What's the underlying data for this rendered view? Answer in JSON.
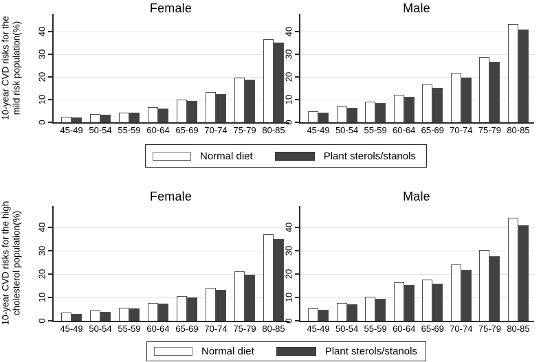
{
  "figure": {
    "rows": [
      {
        "ylabel_lines": [
          "10-year CVD risks for the",
          "mild risk population(%)"
        ]
      },
      {
        "ylabel_lines": [
          "10-year CVD risks for the high",
          "cholesterol population(%)"
        ]
      }
    ]
  },
  "legend": {
    "items": [
      {
        "label": "Normal diet",
        "fill": "#ffffff"
      },
      {
        "label": "Plant sterols/stanols",
        "fill": "#424242"
      }
    ]
  },
  "colors": {
    "normal_fill": "#ffffff",
    "plant_fill": "#424242",
    "gridline": "#e3e3e3",
    "axis": "#2a2a2a"
  },
  "axis": {
    "yticks": [
      0,
      10,
      20,
      30,
      40
    ],
    "categories": [
      "45-49",
      "50-54",
      "55-59",
      "60-64",
      "65-69",
      "70-74",
      "75-79",
      "80-85"
    ]
  },
  "chart_data": [
    {
      "type": "bar",
      "panel": "top-left",
      "title": "Female",
      "ylabel": "10-year CVD risks for the mild risk population(%)",
      "categories": [
        "45-49",
        "50-54",
        "55-59",
        "60-64",
        "65-69",
        "70-74",
        "75-79",
        "80-85"
      ],
      "series": [
        {
          "name": "Normal diet",
          "color": "#ffffff",
          "values": [
            2.3,
            3.5,
            4.3,
            6.6,
            10.0,
            13.4,
            19.8,
            36.7
          ]
        },
        {
          "name": "Plant sterols/stanols",
          "color": "#424242",
          "values": [
            2.1,
            3.2,
            4.1,
            6.2,
            9.5,
            12.5,
            18.7,
            35.0
          ]
        }
      ],
      "ylim": [
        0,
        48
      ],
      "yticks": [
        0,
        10,
        20,
        30,
        40
      ],
      "grid": true,
      "legend_position": "below"
    },
    {
      "type": "bar",
      "panel": "top-right",
      "title": "Male",
      "ylabel": "10-year CVD risks for the mild risk population(%)",
      "categories": [
        "45-49",
        "50-54",
        "55-59",
        "60-64",
        "65-69",
        "70-74",
        "75-79",
        "80-85"
      ],
      "series": [
        {
          "name": "Normal diet",
          "color": "#ffffff",
          "values": [
            4.7,
            7.0,
            9.0,
            12.1,
            16.6,
            21.7,
            28.8,
            43.4
          ]
        },
        {
          "name": "Plant sterols/stanols",
          "color": "#424242",
          "values": [
            4.3,
            6.3,
            8.4,
            11.2,
            15.3,
            19.8,
            26.7,
            41.0
          ]
        }
      ],
      "ylim": [
        0,
        48
      ],
      "yticks": [
        0,
        10,
        20,
        30,
        40
      ],
      "grid": true,
      "legend_position": "below"
    },
    {
      "type": "bar",
      "panel": "bottom-left",
      "title": "Female",
      "ylabel": "10-year CVD risks for the high cholesterol population(%)",
      "categories": [
        "45-49",
        "50-54",
        "55-59",
        "60-64",
        "65-69",
        "70-74",
        "75-79",
        "80-85"
      ],
      "series": [
        {
          "name": "Normal diet",
          "color": "#ffffff",
          "values": [
            3.4,
            4.3,
            5.6,
            7.7,
            10.5,
            14.0,
            21.1,
            37.2
          ]
        },
        {
          "name": "Plant sterols/stanols",
          "color": "#424242",
          "values": [
            3.0,
            3.9,
            5.4,
            7.3,
            9.9,
            13.1,
            19.8,
            35.0
          ]
        }
      ],
      "ylim": [
        0,
        49
      ],
      "yticks": [
        0,
        10,
        20,
        30,
        40
      ],
      "grid": true,
      "legend_position": "below"
    },
    {
      "type": "bar",
      "panel": "bottom-right",
      "title": "Male",
      "ylabel": "10-year CVD risks for the high cholesterol population(%)",
      "categories": [
        "45-49",
        "50-54",
        "55-59",
        "60-64",
        "65-69",
        "70-74",
        "75-79",
        "80-85"
      ],
      "series": [
        {
          "name": "Normal diet",
          "color": "#ffffff",
          "values": [
            5.3,
            7.7,
            10.4,
            16.5,
            17.5,
            24.0,
            30.2,
            44.1
          ]
        },
        {
          "name": "Plant sterols/stanols",
          "color": "#424242",
          "values": [
            4.6,
            7.1,
            9.3,
            15.2,
            15.9,
            21.9,
            27.7,
            40.9
          ]
        }
      ],
      "ylim": [
        0,
        49
      ],
      "yticks": [
        0,
        10,
        20,
        30,
        40
      ],
      "grid": true,
      "legend_position": "below"
    }
  ]
}
